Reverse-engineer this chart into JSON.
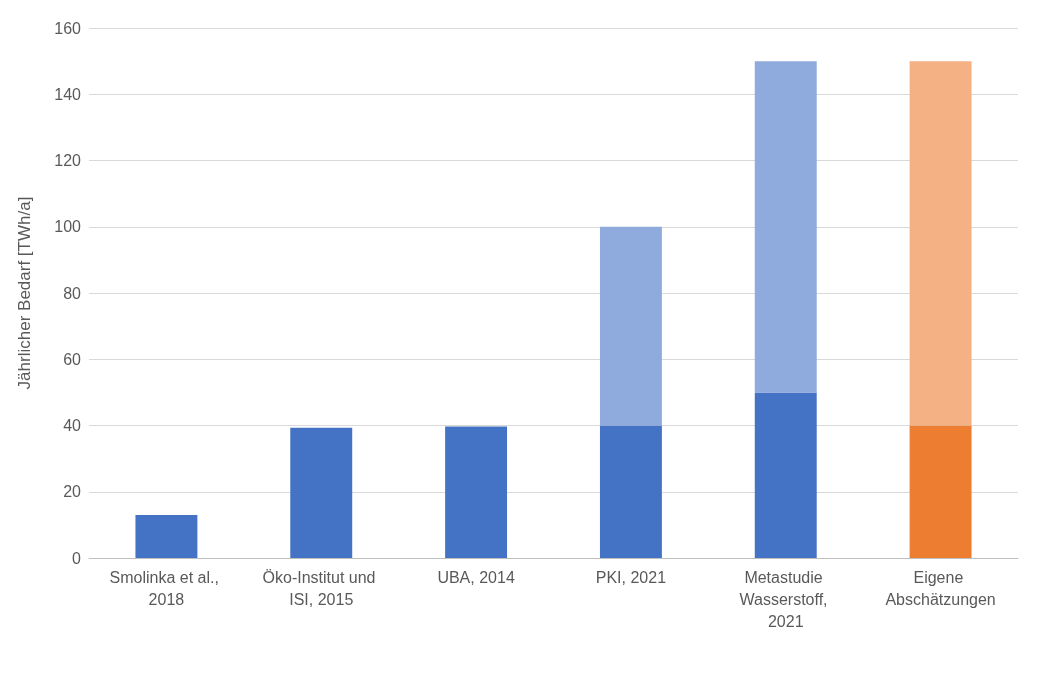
{
  "chart_data": {
    "type": "bar",
    "stacked": true,
    "ylabel": "Jährlicher Bedarf [TWh/a]",
    "categories": [
      "Smolinka et al., 2018",
      "Öko-Institut und ISI, 2015",
      "UBA, 2014",
      "PKI, 2021",
      "Metastudie Wasserstoff, 2021",
      "Eigene Abschätzungen"
    ],
    "series": [
      {
        "colors": [
          "#4472c4",
          "#4472c4",
          "#4472c4",
          "#4472c4",
          "#4472c4",
          "#ed7d31"
        ],
        "values": [
          13,
          39.3,
          39.7,
          40,
          50,
          40
        ]
      },
      {
        "colors": [
          "#8faadc",
          "#8faadc",
          "#8faadc",
          "#8faadc",
          "#8faadc",
          "#f4b183"
        ],
        "values": [
          null,
          null,
          null,
          60,
          100,
          110
        ]
      }
    ],
    "ylim": [
      0,
      160
    ],
    "yticks": [
      0,
      20,
      40,
      60,
      80,
      100,
      120,
      140,
      160
    ],
    "grid": "y"
  }
}
